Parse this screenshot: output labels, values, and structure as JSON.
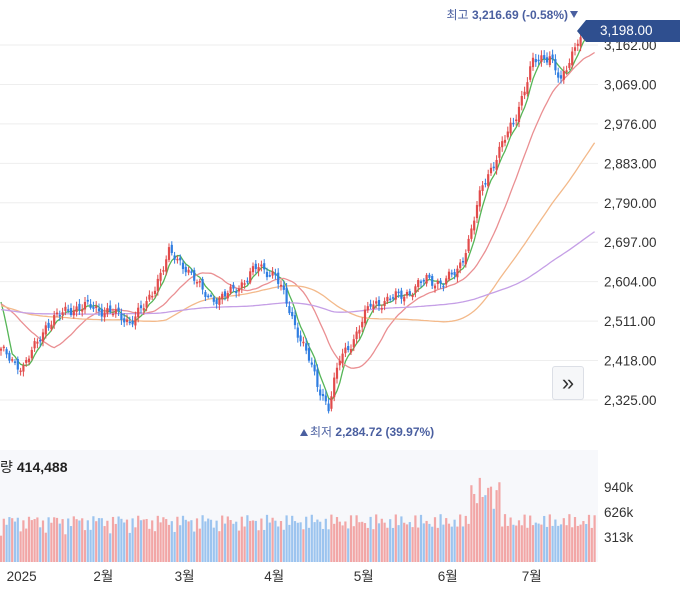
{
  "chart_data": {
    "type": "candlestick",
    "y_ticks": [
      "3,162.00",
      "3,069.00",
      "2,976.00",
      "2,883.00",
      "2,790.00",
      "2,697.00",
      "2,604.00",
      "2,511.00",
      "2,418.00",
      "2,325.00"
    ],
    "y_tick_values": [
      3162,
      3069,
      2976,
      2883,
      2790,
      2697,
      2604,
      2511,
      2418,
      2325
    ],
    "ylim": [
      2270,
      3230
    ],
    "x_labels": [
      "2025",
      "2월",
      "3월",
      "4월",
      "5월",
      "6월",
      "7월"
    ],
    "current_price": "3,198.00",
    "high_label": "최고",
    "high_value": "3,216.69 (-0.58%)",
    "low_label": "최저",
    "low_value": "2,284.72 (39.97%)",
    "volume_label": "량",
    "volume_value": "414,488",
    "volume_ticks": [
      "940k",
      "626k",
      "313k"
    ],
    "volume_tick_values": [
      940000,
      626000,
      313000
    ],
    "volume_max": 1250000,
    "close_anchors": [
      [
        0,
        2440
      ],
      [
        8,
        2400
      ],
      [
        16,
        2500
      ],
      [
        24,
        2540
      ],
      [
        32,
        2545
      ],
      [
        40,
        2530
      ],
      [
        46,
        2510
      ],
      [
        52,
        2550
      ],
      [
        60,
        2670
      ],
      [
        66,
        2640
      ],
      [
        72,
        2580
      ],
      [
        78,
        2560
      ],
      [
        86,
        2600
      ],
      [
        92,
        2640
      ],
      [
        98,
        2620
      ],
      [
        104,
        2520
      ],
      [
        110,
        2420
      ],
      [
        113,
        2360
      ],
      [
        117,
        2310
      ],
      [
        121,
        2420
      ],
      [
        126,
        2470
      ],
      [
        132,
        2550
      ],
      [
        138,
        2560
      ],
      [
        146,
        2580
      ],
      [
        152,
        2610
      ],
      [
        158,
        2600
      ],
      [
        163,
        2630
      ],
      [
        167,
        2700
      ],
      [
        172,
        2830
      ],
      [
        177,
        2900
      ],
      [
        183,
        2980
      ],
      [
        190,
        3120
      ],
      [
        196,
        3140
      ],
      [
        200,
        3070
      ],
      [
        206,
        3180
      ],
      [
        212,
        3198
      ]
    ],
    "moving_averages": [
      {
        "period": 5,
        "color": "#55b556"
      },
      {
        "period": 20,
        "color": "#ea8f92"
      },
      {
        "period": 60,
        "color": "#f3b98a"
      },
      {
        "period": 120,
        "color": "#c59fe6"
      }
    ],
    "colors": {
      "up": "#e24b4b",
      "down": "#2f7de1",
      "vol_up": "#f2a6a6",
      "vol_down": "#9cc4ef",
      "grid": "#eeeeee",
      "badge": "#2f4f8f",
      "hi_lo_text": "#4a5fa0"
    }
  }
}
